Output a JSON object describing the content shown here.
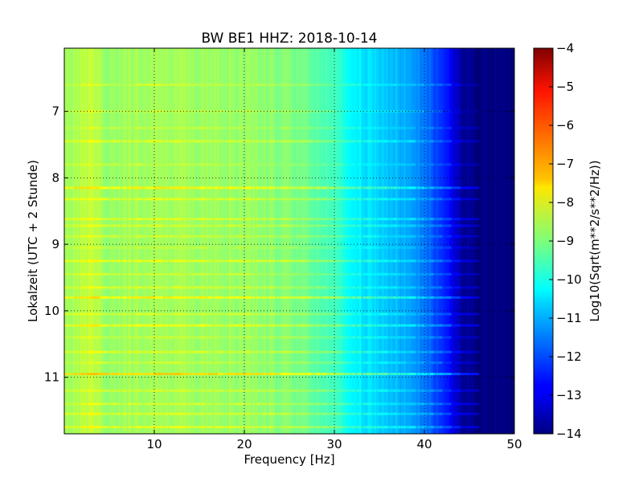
{
  "chart_data": {
    "type": "heatmap",
    "title": "BW BE1 HHZ: 2018-10-14",
    "xlabel": "Frequency [Hz]",
    "ylabel": "Lokalzeit (UTC + 2 Stunde)",
    "xlim": [
      0,
      50
    ],
    "ylim": [
      6.05,
      11.85
    ],
    "y_inverted": true,
    "x_ticks": [
      10,
      20,
      30,
      40,
      50
    ],
    "y_ticks": [
      7,
      8,
      9,
      10,
      11
    ],
    "grid": true,
    "colormap": "jet",
    "colorbar": {
      "label": "Log10(Sqrt(m**2/s**2/Hz))",
      "min": -14,
      "max": -4,
      "ticks": [
        -4,
        -5,
        -6,
        -7,
        -8,
        -9,
        -10,
        -11,
        -12,
        -13,
        -14
      ]
    },
    "frequency_profile": {
      "frequency_hz": [
        0,
        3,
        5,
        10,
        15,
        20,
        25,
        28,
        30,
        32,
        34,
        36,
        38,
        40,
        42,
        44,
        46,
        50
      ],
      "log10_amplitude": [
        -8.8,
        -8.3,
        -8.8,
        -8.6,
        -8.7,
        -8.8,
        -9.0,
        -9.3,
        -9.7,
        -10.3,
        -10.6,
        -10.8,
        -11.1,
        -11.6,
        -12.3,
        -13.6,
        -14,
        -14
      ]
    },
    "bands": [
      {
        "time": 6.6,
        "delta": 0.4
      },
      {
        "time": 7.0,
        "delta": 0.3
      },
      {
        "time": 7.25,
        "delta": 0.3
      },
      {
        "time": 7.45,
        "delta": 0.6
      },
      {
        "time": 7.8,
        "delta": 0.3
      },
      {
        "time": 8.15,
        "delta": 1.0
      },
      {
        "time": 8.32,
        "delta": 0.6
      },
      {
        "time": 8.62,
        "delta": 0.6
      },
      {
        "time": 8.72,
        "delta": 0.5
      },
      {
        "time": 8.88,
        "delta": 0.4
      },
      {
        "time": 9.05,
        "delta": 0.3
      },
      {
        "time": 9.25,
        "delta": 0.7
      },
      {
        "time": 9.45,
        "delta": 0.4
      },
      {
        "time": 9.65,
        "delta": 0.5
      },
      {
        "time": 9.8,
        "delta": 1.0
      },
      {
        "time": 10.05,
        "delta": 0.5
      },
      {
        "time": 10.22,
        "delta": 0.8
      },
      {
        "time": 10.4,
        "delta": 0.4
      },
      {
        "time": 10.62,
        "delta": 0.6
      },
      {
        "time": 10.78,
        "delta": 0.4
      },
      {
        "time": 10.95,
        "delta": 1.3
      },
      {
        "time": 11.2,
        "delta": 0.5
      },
      {
        "time": 11.4,
        "delta": 0.5
      },
      {
        "time": 11.55,
        "delta": 0.6
      },
      {
        "time": 11.75,
        "delta": 0.7
      }
    ]
  }
}
